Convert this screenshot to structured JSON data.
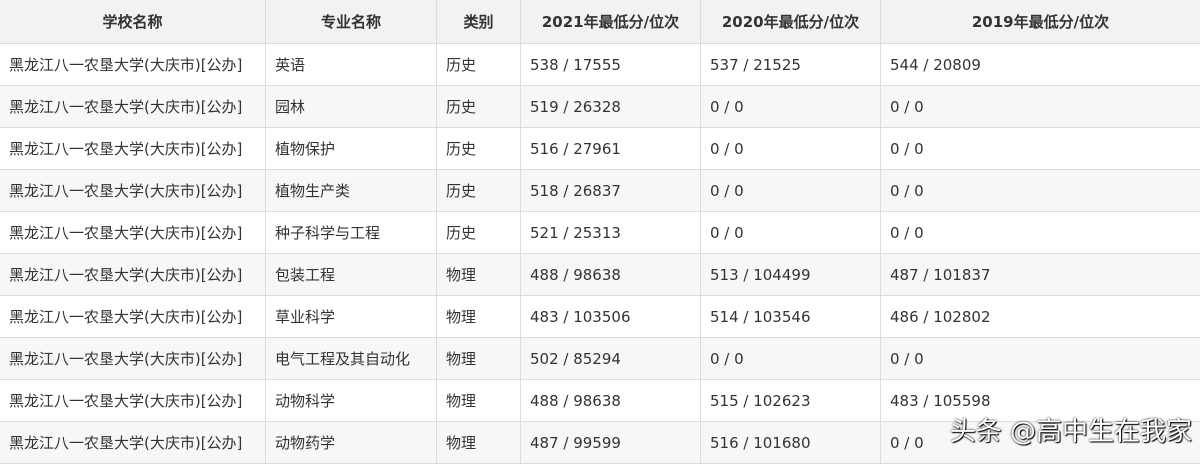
{
  "headers": [
    "学校名称",
    "专业名称",
    "类别",
    "2021年最低分/位次",
    "2020年最低分/位次",
    "2019年最低分/位次"
  ],
  "rows": [
    [
      "黑龙江八一农垦大学(大庆市)[公办]",
      "英语",
      "历史",
      "538 / 17555",
      "537 / 21525",
      "544 / 20809"
    ],
    [
      "黑龙江八一农垦大学(大庆市)[公办]",
      "园林",
      "历史",
      "519 / 26328",
      "0 / 0",
      "0 / 0"
    ],
    [
      "黑龙江八一农垦大学(大庆市)[公办]",
      "植物保护",
      "历史",
      "516 / 27961",
      "0 / 0",
      "0 / 0"
    ],
    [
      "黑龙江八一农垦大学(大庆市)[公办]",
      "植物生产类",
      "历史",
      "518 / 26837",
      "0 / 0",
      "0 / 0"
    ],
    [
      "黑龙江八一农垦大学(大庆市)[公办]",
      "种子科学与工程",
      "历史",
      "521 / 25313",
      "0 / 0",
      "0 / 0"
    ],
    [
      "黑龙江八一农垦大学(大庆市)[公办]",
      "包装工程",
      "物理",
      "488 / 98638",
      "513 / 104499",
      "487 / 101837"
    ],
    [
      "黑龙江八一农垦大学(大庆市)[公办]",
      "草业科学",
      "物理",
      "483 / 103506",
      "514 / 103546",
      "486 / 102802"
    ],
    [
      "黑龙江八一农垦大学(大庆市)[公办]",
      "电气工程及其自动化",
      "物理",
      "502 / 85294",
      "0 / 0",
      "0 / 0"
    ],
    [
      "黑龙江八一农垦大学(大庆市)[公办]",
      "动物科学",
      "物理",
      "488 / 98638",
      "515 / 102623",
      "483 / 105598"
    ],
    [
      "黑龙江八一农垦大学(大庆市)[公办]",
      "动物药学",
      "物理",
      "487 / 99599",
      "516 / 101680",
      "0 / 0"
    ]
  ],
  "watermark": "头条 @高中生在我家"
}
